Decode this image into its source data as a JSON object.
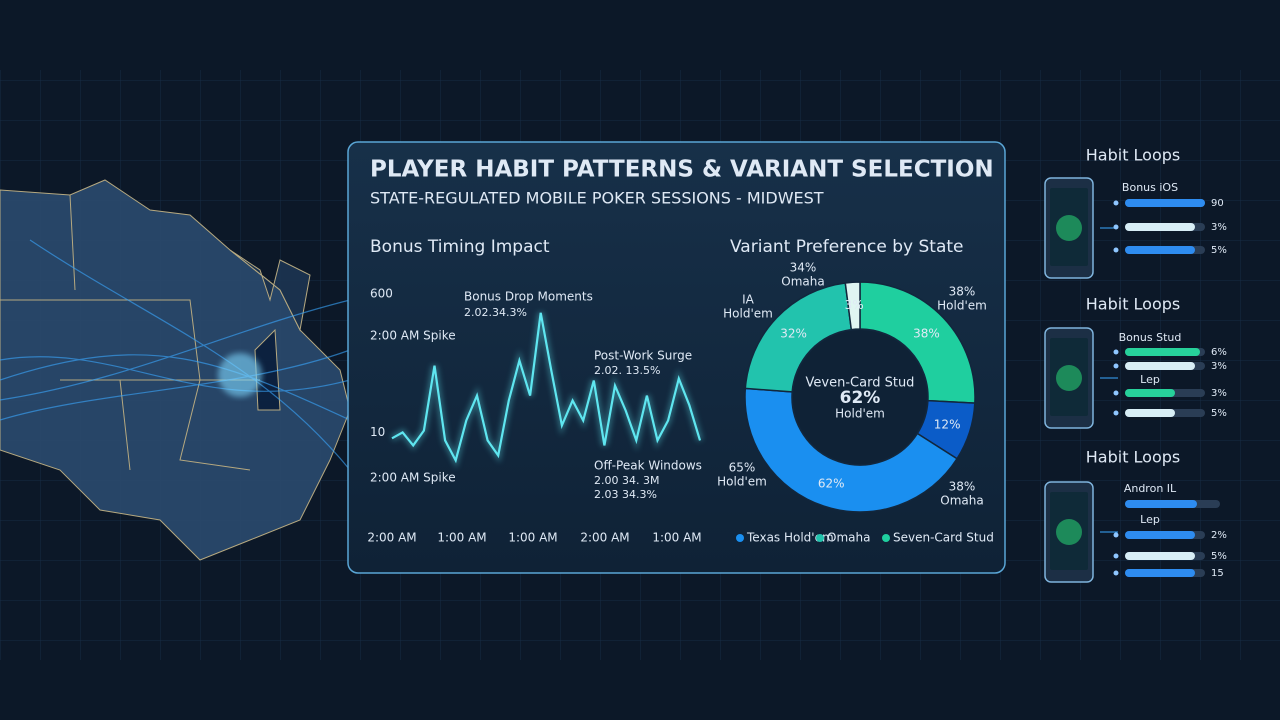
{
  "panel": {
    "title": "PLAYER HABIT PATTERNS & VARIANT SELECTION",
    "subtitle": "STATE-REGULATED MOBILE POKER SESSIONS - MIDWEST"
  },
  "line_chart": {
    "type": "line",
    "title": "Bonus Timing Impact",
    "categories": [
      "2:00 AM",
      "1:00 AM",
      "1:00 AM",
      "2:00 AM",
      "1:00 AM"
    ],
    "values": [
      -15,
      10,
      -45,
      18,
      294,
      -24,
      -109,
      61,
      167,
      -24,
      -88,
      146,
      316,
      167,
      519,
      273,
      40,
      146,
      61,
      231,
      -45,
      209,
      103,
      -24,
      167,
      -24,
      61,
      239,
      125,
      -24
    ],
    "color": "#5fe6f0",
    "ylim": [
      -320,
      680
    ],
    "yticks": [
      10,
      600
    ],
    "annotations": [
      "Bonus Drop Moments",
      "2.02.34.3%",
      "2:00 AM Spike",
      "Post-Work Surge",
      "2.02. 13.5%",
      "Off-Peak Windows",
      "2.00 34. 3M",
      "2.03 34.3%",
      "2:00 AM Spike"
    ]
  },
  "donut_chart": {
    "type": "donut",
    "title": "Variant Preference by State",
    "values": [
      38,
      12,
      62,
      32,
      3
    ],
    "value_labels": [
      "38%",
      "12%",
      "62%",
      "32%",
      "3%"
    ],
    "colors": [
      "#1fcf9f",
      "#0b5cc8",
      "#1a8ff0",
      "#22c3ad",
      "#dff5f2"
    ],
    "center_labels": [
      "Veven-Card Stud",
      "62%",
      "Hold'em"
    ],
    "annotations": [
      "34%",
      "Omaha",
      "IA",
      "Hold'em",
      "38%",
      "Hold'em",
      "65%",
      "Hold'em",
      "38%",
      "Omaha"
    ],
    "legend": [
      {
        "name": "Texas Hold'em",
        "color": "#1a8ff0"
      },
      {
        "name": "Omaha",
        "color": "#22c3ad"
      },
      {
        "name": "Seven-Card Stud",
        "color": "#1fcf9f"
      }
    ]
  },
  "habit_loops": [
    {
      "title": "Habit Loops",
      "labels": [
        "Bonus iOS"
      ],
      "bar_values": [
        "90",
        "3%",
        "5%"
      ]
    },
    {
      "title": "Habit Loops",
      "labels": [
        "Bonus Stud",
        "Lep"
      ],
      "bar_values": [
        "6%",
        "3%",
        "3%",
        "5%"
      ]
    },
    {
      "title": "Habit Loops",
      "labels": [
        "Andron IL",
        "Lep"
      ],
      "bar_values": [
        "2%",
        "5%",
        "15"
      ]
    }
  ]
}
